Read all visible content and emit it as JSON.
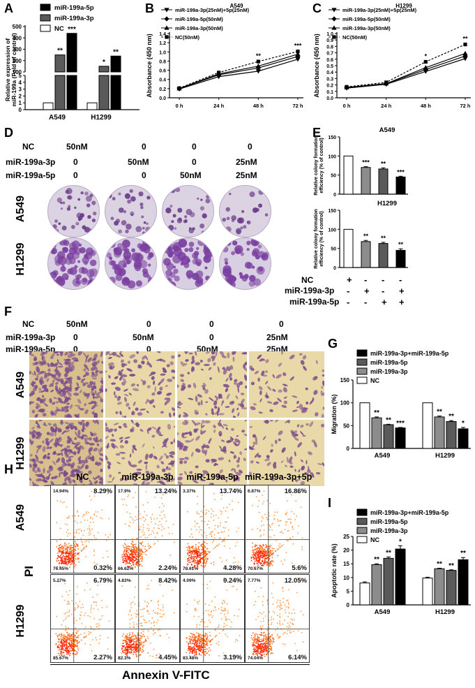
{
  "panel_labels": {
    "A": "A",
    "B": "B",
    "C": "C",
    "D": "D",
    "E": "E",
    "F": "F",
    "G": "G",
    "H": "H",
    "I": "I"
  },
  "colors": {
    "black": "#000000",
    "dark_gray": "#5a5a5a",
    "mid_gray": "#8c8c8c",
    "white": "#ffffff",
    "stain": "#6a3a8a",
    "well": "#d8cde0",
    "transwell_bg": "#e9d9a6",
    "transwell_cells": "#7a4a8a",
    "facs_dense": "#ff2a00",
    "facs_mid": "#ff7a2a",
    "facs_sparse": "#ffc080"
  },
  "treatment_table_D": {
    "row_labels": [
      "NC",
      "miR-199a-3p",
      "miR-199a-5p"
    ],
    "columns": [
      [
        "50nM",
        "0",
        "0"
      ],
      [
        "0",
        "50nM",
        "0"
      ],
      [
        "0",
        "0",
        "50nM"
      ],
      [
        "0",
        "25nM",
        "25nM"
      ]
    ]
  },
  "cell_lines": [
    "A549",
    "H1299"
  ],
  "treatment_table_F": {
    "row_labels": [
      "NC",
      "miR-199a-3p",
      "miR-199a-5p"
    ],
    "columns": [
      [
        "50nM",
        "0",
        "0"
      ],
      [
        "0",
        "50nM",
        "0"
      ],
      [
        "0",
        "0",
        "50nM"
      ],
      [
        "0",
        "25nM",
        "25nM"
      ]
    ]
  },
  "e_table": {
    "row_labels": [
      "NC",
      "miR-199a-3p",
      "miR-199a-5p"
    ],
    "rows": [
      [
        "+",
        "-",
        "-",
        "-"
      ],
      [
        "-",
        "+",
        "-",
        "+"
      ],
      [
        "-",
        "-",
        "+",
        "+"
      ]
    ]
  },
  "facs": {
    "columns": [
      "NC",
      "miR-199a-3p",
      "miR-199a-5p",
      "miR-199a-3p+5p"
    ],
    "ylabel": "PI",
    "xlabel": "Annexin V-FITC",
    "tick": "10",
    "quadrants": [
      [
        [
          "14.94%",
          "8.29%",
          "76.45%",
          "0.32%"
        ],
        [
          "17.9%",
          "13.24%",
          "66.62%",
          "2.24%"
        ],
        [
          "3.37%",
          "13.74%",
          "78.61%",
          "4.28%"
        ],
        [
          "6.87%",
          "16.86%",
          "70.67%",
          "5.6%"
        ]
      ],
      [
        [
          "5.27%",
          "6.79%",
          "85.67%",
          "2.27%"
        ],
        [
          "4.83%",
          "8.42%",
          "82.3%",
          "4.45%"
        ],
        [
          "4.09%",
          "9.24%",
          "83.48%",
          "3.19%"
        ],
        [
          "7.77%",
          "12.05%",
          "74.04%",
          "6.14%"
        ]
      ]
    ]
  },
  "chart_data": [
    {
      "panel": "A",
      "type": "bar",
      "categories": [
        "A549",
        "H1299"
      ],
      "series": [
        {
          "name": "miR-199a-5p",
          "values": [
            440,
            240
          ],
          "color": "#000000"
        },
        {
          "name": "miR-199a-3p",
          "values": [
            250,
            150
          ],
          "color": "#5a5a5a"
        },
        {
          "name": "NC",
          "values": [
            1,
            1
          ],
          "color": "#ffffff"
        }
      ],
      "draw_order": [
        "NC",
        "miR-199a-3p",
        "miR-199a-5p"
      ],
      "significance": [
        [
          "",
          "**",
          "***"
        ],
        [
          "",
          "*",
          "**"
        ]
      ],
      "ylabel": "Relative expression of miR-199a (Fold of control)",
      "yticks_lower": [
        "0",
        "1",
        "2",
        "3",
        "4",
        "5"
      ],
      "yticks_upper": [
        "100",
        "200",
        "300",
        "400",
        "500"
      ],
      "axis_break": true
    },
    {
      "panel": "B",
      "type": "line",
      "title": "A549",
      "x": [
        "0 h",
        "24 h",
        "48 h",
        "72 h"
      ],
      "series": [
        {
          "name": "miR-199a-3p(25nM)+5p(25nM)",
          "values": [
            0.19,
            0.46,
            0.58,
            0.84
          ],
          "marker": "triangle-down"
        },
        {
          "name": "miR-199a-5p(50nM)",
          "values": [
            0.2,
            0.5,
            0.65,
            0.9
          ],
          "marker": "diamond"
        },
        {
          "name": "miR-199a-3p(50nM)",
          "values": [
            0.2,
            0.52,
            0.69,
            0.95
          ],
          "marker": "triangle-up"
        },
        {
          "name": "NC(50nM)",
          "values": [
            0.21,
            0.55,
            0.79,
            1.01
          ],
          "marker": "square",
          "dashed": true
        }
      ],
      "significance": [
        "",
        "",
        "**",
        "***"
      ],
      "ylabel": "Absorbance (450 nm)",
      "ylim": [
        0,
        1.4
      ],
      "yticks": [
        "0.0",
        "0.2",
        "0.4",
        "0.6",
        "0.8",
        "1.0",
        "1.2",
        "1.4"
      ]
    },
    {
      "panel": "C",
      "type": "line",
      "title": "H1299",
      "x": [
        "0 h",
        "24 h",
        "48 h",
        "72 h"
      ],
      "series": [
        {
          "name": "miR-199a-3p(25nM)+5p(25nM)",
          "values": [
            0.15,
            0.21,
            0.41,
            0.61
          ],
          "marker": "triangle-down"
        },
        {
          "name": "miR-199a-5p(50nM)",
          "values": [
            0.16,
            0.22,
            0.44,
            0.65
          ],
          "marker": "diamond"
        },
        {
          "name": "miR-199a-3p(50nM)",
          "values": [
            0.16,
            0.22,
            0.47,
            0.69
          ],
          "marker": "triangle-up"
        },
        {
          "name": "NC(50nM)",
          "values": [
            0.17,
            0.24,
            0.56,
            0.83
          ],
          "marker": "square",
          "dashed": true
        }
      ],
      "significance": [
        "",
        "",
        "*",
        "**"
      ],
      "ylabel": "Absorbance (450 nm)",
      "ylim": [
        0,
        1.0
      ],
      "yticks": [
        "0.0",
        "0.1",
        "0.2",
        "0.3",
        "0.4",
        "0.5",
        "0.6",
        "0.7",
        "0.8",
        "0.9",
        "1.0"
      ]
    },
    {
      "panel": "E1",
      "type": "bar",
      "title": "A549",
      "categories": [
        "NC",
        "miR-199a-3p",
        "miR-199a-5p",
        "miR-199a-3p+5p"
      ],
      "values": [
        100,
        70,
        66,
        45
      ],
      "errors": [
        0,
        2,
        3,
        2
      ],
      "colors": [
        "#ffffff",
        "#8c8c8c",
        "#5a5a5a",
        "#000000"
      ],
      "significance": [
        "",
        "***",
        "**",
        "***"
      ],
      "ylabel": "Relative colony formation efficiency (% of control)",
      "ylim": [
        0,
        150
      ],
      "yticks": [
        "0",
        "50",
        "100",
        "150"
      ]
    },
    {
      "panel": "E2",
      "type": "bar",
      "title": "H1299",
      "categories": [
        "NC",
        "miR-199a-3p",
        "miR-199a-5p",
        "miR-199a-3p+5p"
      ],
      "values": [
        100,
        68,
        63,
        45
      ],
      "errors": [
        0,
        3,
        3,
        4
      ],
      "colors": [
        "#ffffff",
        "#8c8c8c",
        "#5a5a5a",
        "#000000"
      ],
      "significance": [
        "",
        "**",
        "**",
        "**"
      ],
      "ylabel": "Relative colony formation efficiency (% of control)",
      "ylim": [
        0,
        150
      ],
      "yticks": [
        "0",
        "50",
        "100",
        "150"
      ]
    },
    {
      "panel": "G",
      "type": "bar",
      "categories": [
        "A549",
        "H1299"
      ],
      "series": [
        {
          "name": "NC",
          "values": [
            100,
            100
          ],
          "errors": [
            0,
            0
          ],
          "color": "#ffffff"
        },
        {
          "name": "miR-199a-3p",
          "values": [
            67,
            69
          ],
          "errors": [
            2,
            2
          ],
          "color": "#8c8c8c"
        },
        {
          "name": "miR-199a-5p",
          "values": [
            52,
            59
          ],
          "errors": [
            1,
            2
          ],
          "color": "#5a5a5a"
        },
        {
          "name": "miR-199a-3p+miR-199a-5p",
          "values": [
            45,
            43
          ],
          "errors": [
            1,
            3
          ],
          "color": "#000000"
        }
      ],
      "legend_order": [
        "miR-199a-3p+miR-199a-5p",
        "miR-199a-5p",
        "miR-199a-3p",
        "NC"
      ],
      "significance": [
        [
          "",
          "**",
          "**",
          "***"
        ],
        [
          "",
          "**",
          "**",
          "*"
        ]
      ],
      "ylabel": "Migration (%)",
      "ylim": [
        0,
        150
      ],
      "yticks": [
        "0",
        "50",
        "100",
        "150"
      ]
    },
    {
      "panel": "I",
      "type": "bar",
      "categories": [
        "A549",
        "H1299"
      ],
      "series": [
        {
          "name": "NC",
          "values": [
            8,
            9.8
          ],
          "errors": [
            0.4,
            0.3
          ],
          "color": "#ffffff"
        },
        {
          "name": "miR-199a-3p",
          "values": [
            14.7,
            13.2
          ],
          "errors": [
            0.3,
            0.2
          ],
          "color": "#8c8c8c"
        },
        {
          "name": "miR-199a-5p",
          "values": [
            17,
            12.6
          ],
          "errors": [
            0.5,
            0.2
          ],
          "color": "#5a5a5a"
        },
        {
          "name": "miR-199a-3p+miR-199a-5p",
          "values": [
            20.4,
            16.5
          ],
          "errors": [
            1.2,
            0.8
          ],
          "color": "#000000"
        }
      ],
      "legend_order": [
        "miR-199a-3p+miR-199a-5p",
        "miR-199a-5p",
        "miR-199a-3p",
        "NC"
      ],
      "significance": [
        [
          "",
          "**",
          "**",
          "*"
        ],
        [
          "",
          "**",
          "**",
          "**"
        ]
      ],
      "ylabel": "Apoptotic rate (%)",
      "ylim": [
        0,
        25
      ],
      "yticks": [
        "0",
        "5",
        "10",
        "15",
        "20",
        "25"
      ]
    }
  ]
}
